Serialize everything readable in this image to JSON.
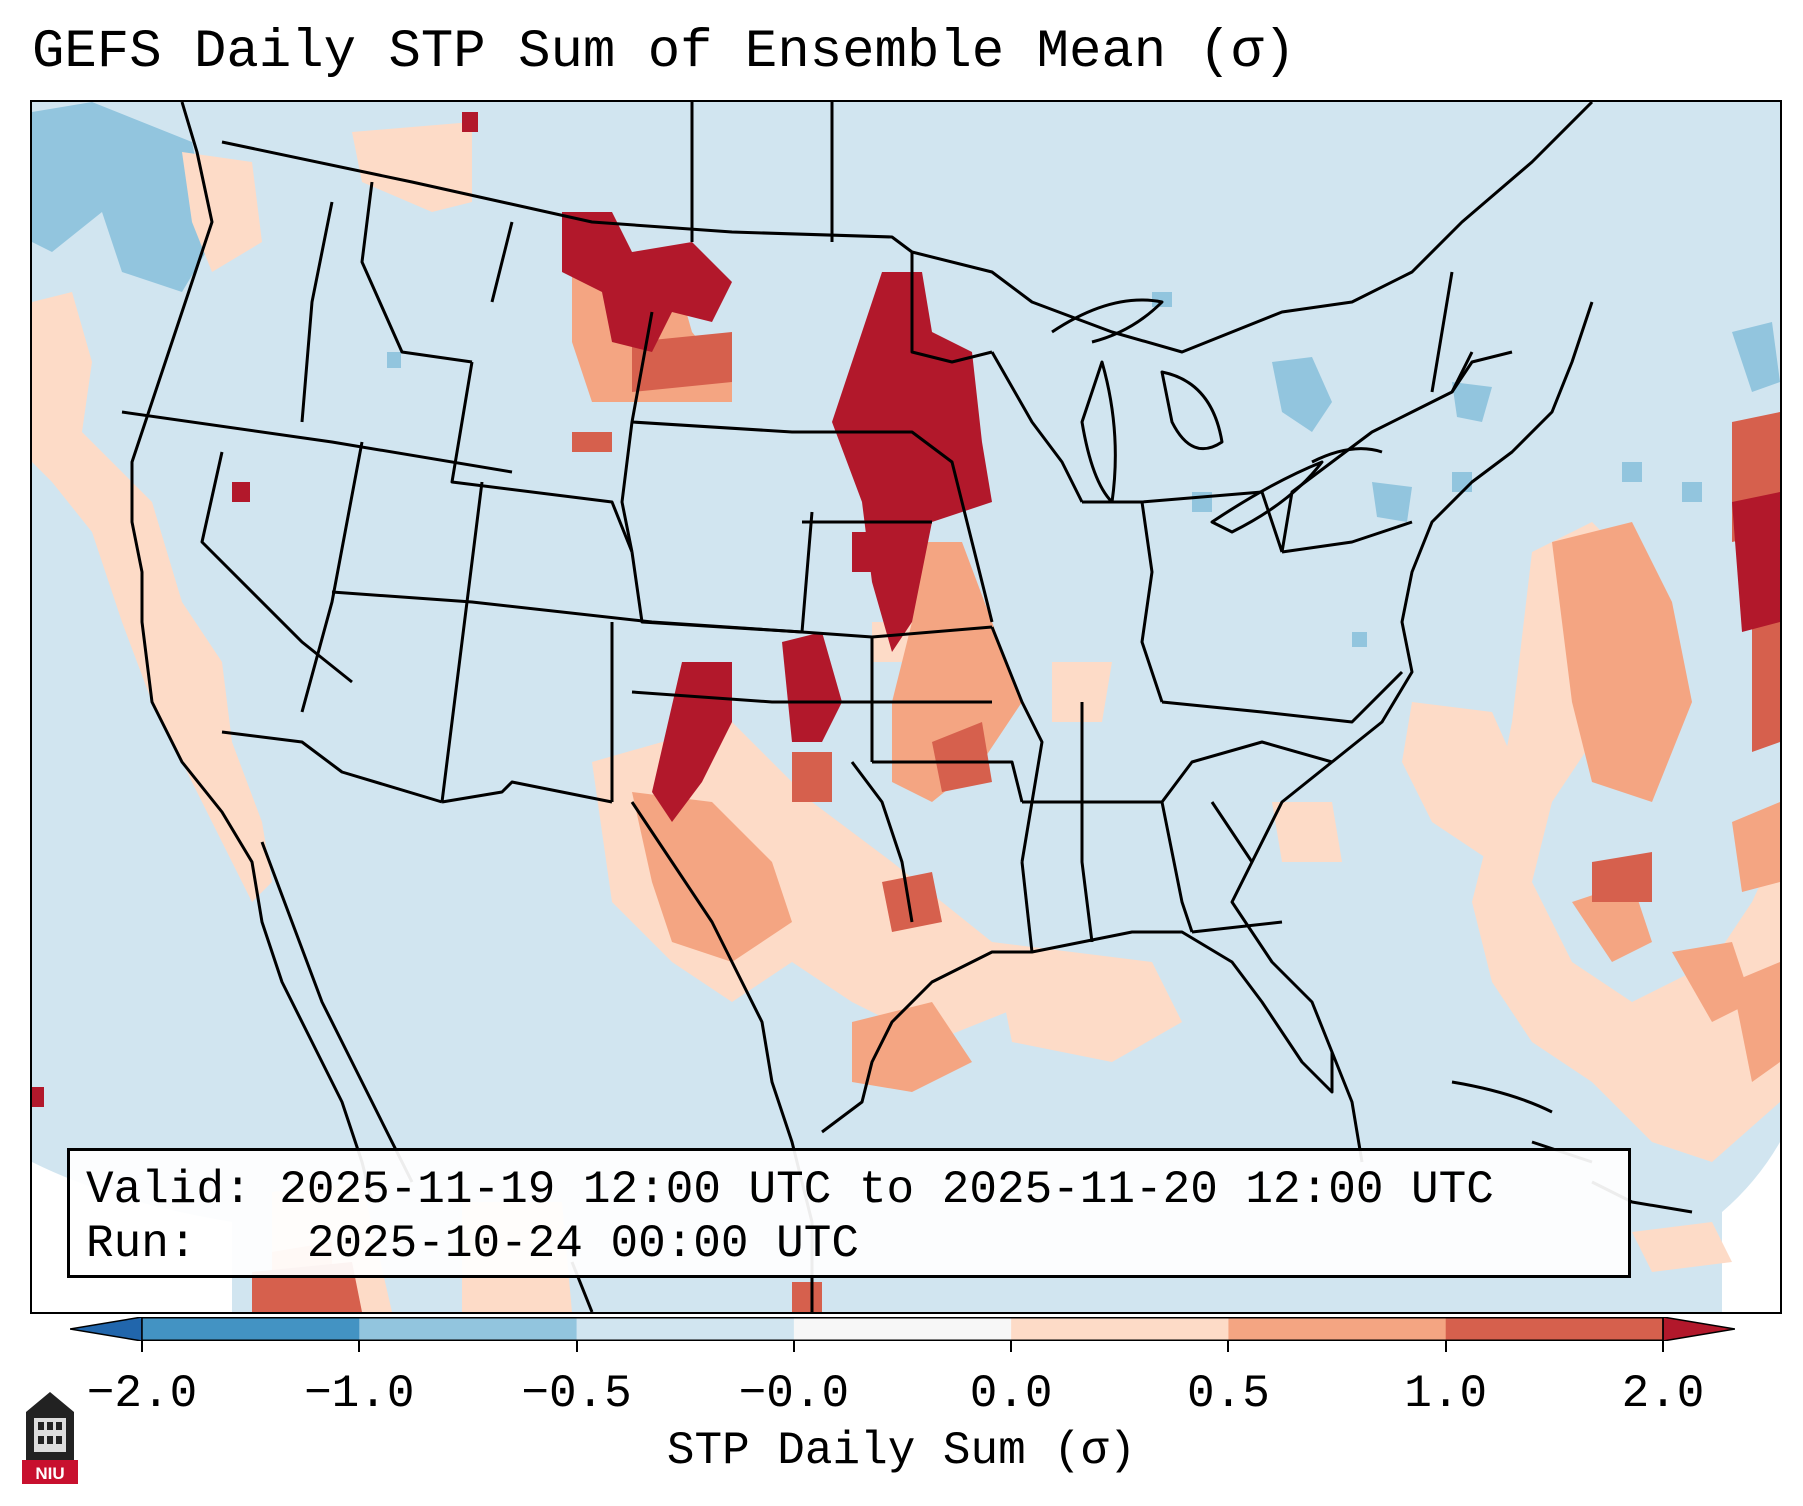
{
  "title": "GEFS Daily STP Sum of Ensemble Mean (σ)",
  "info": {
    "valid_label": "Valid:",
    "valid_value": "2025-11-19 12:00 UTC to 2025-11-20 12:00 UTC",
    "run_label": "Run:",
    "run_value": "2025-10-24 00:00 UTC"
  },
  "colorbar": {
    "label": "STP Daily Sum (σ)",
    "ticks": [
      "−2.0",
      "−1.0",
      "−0.5",
      "−0.0",
      "0.0",
      "0.5",
      "1.0",
      "2.0"
    ],
    "colors": [
      "#2166ac",
      "#4393c3",
      "#92c5de",
      "#d1e5f0",
      "#f7f7f7",
      "#fddbc7",
      "#f4a582",
      "#d6604d",
      "#b2182b"
    ],
    "extend": "both"
  },
  "logo_text": "NIU",
  "colors": {
    "background_field": "#d1e5f0",
    "positive_strong": "#b2182b",
    "positive_mid": "#d6604d",
    "positive_light": "#f4a582",
    "positive_faint": "#fddbc7",
    "negative_light": "#92c5de",
    "negative_mid": "#4393c3"
  }
}
